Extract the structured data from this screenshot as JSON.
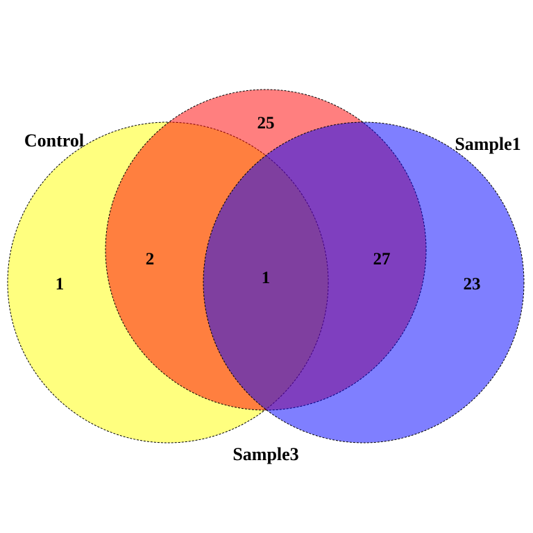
{
  "sets": [
    {
      "id": "control",
      "label": "Control",
      "color": "#ffff00"
    },
    {
      "id": "sample3",
      "label": "Sample3",
      "color": "#ff0000"
    },
    {
      "id": "sample1",
      "label": "Sample1",
      "color": "#0000ff"
    }
  ],
  "fill_opacity": 0.5,
  "regions": [
    {
      "id": "control-only",
      "sets": [
        "Control"
      ],
      "count": "1"
    },
    {
      "id": "sample3-only",
      "sets": [
        "Sample3"
      ],
      "count": "25"
    },
    {
      "id": "sample1-only",
      "sets": [
        "Sample1"
      ],
      "count": "23"
    },
    {
      "id": "control-sample3",
      "sets": [
        "Control",
        "Sample3"
      ],
      "count": "2"
    },
    {
      "id": "sample3-sample1",
      "sets": [
        "Sample3",
        "Sample1"
      ],
      "count": "27"
    },
    {
      "id": "all-three",
      "sets": [
        "Control",
        "Sample3",
        "Sample1"
      ],
      "count": "1"
    }
  ]
}
